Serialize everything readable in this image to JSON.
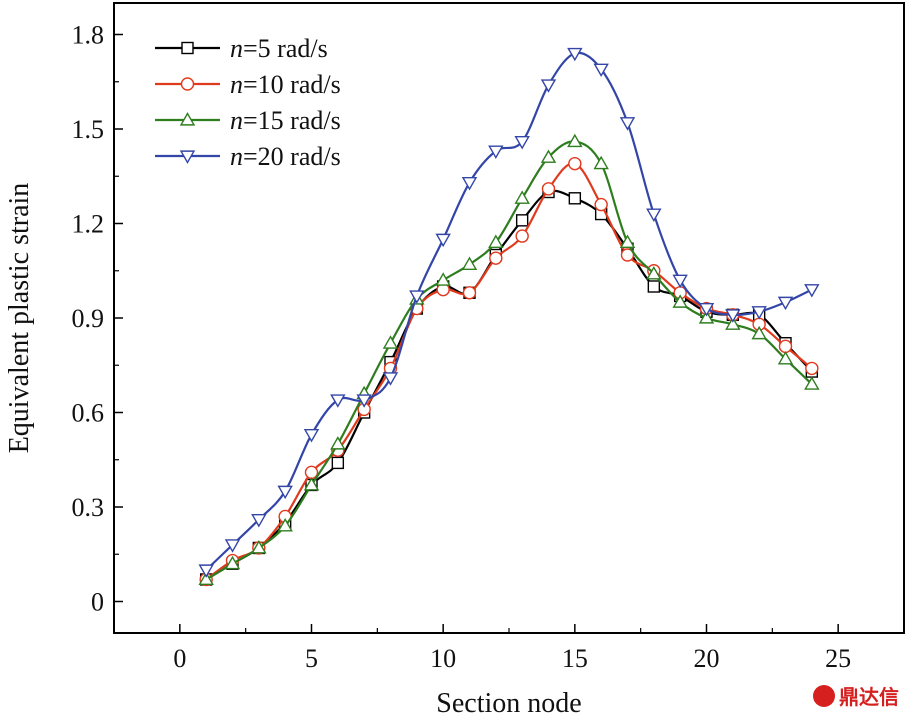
{
  "chart_data": {
    "type": "line",
    "title": "",
    "xlabel": "Section node",
    "ylabel": "Equivalent plastic strain",
    "xlim": [
      -2.5,
      27.5
    ],
    "ylim": [
      -0.1,
      1.9
    ],
    "xticks": [
      0,
      5,
      10,
      15,
      20,
      25
    ],
    "yticks": [
      0,
      0.3,
      0.6,
      0.9,
      1.2,
      1.5,
      1.8
    ],
    "xtick_labels": [
      "0",
      "5",
      "10",
      "15",
      "20",
      "25"
    ],
    "ytick_labels": [
      "0",
      "0.3",
      "0.6",
      "0.9",
      "1.2",
      "1.5",
      "1.8"
    ],
    "legend_position": "top-left",
    "x": [
      1,
      2,
      3,
      4,
      5,
      6,
      7,
      8,
      9,
      10,
      11,
      12,
      13,
      14,
      15,
      16,
      17,
      18,
      19,
      20,
      21,
      22,
      23,
      24
    ],
    "series": [
      {
        "name_italic": "n",
        "name_rest": "=5 rad/s",
        "color": "#000000",
        "marker": "square",
        "values": [
          0.07,
          0.12,
          0.17,
          0.25,
          0.37,
          0.44,
          0.6,
          0.76,
          0.93,
          1.0,
          0.98,
          1.1,
          1.21,
          1.3,
          1.28,
          1.23,
          1.12,
          1.0,
          0.97,
          0.92,
          0.91,
          0.91,
          0.82,
          0.73
        ]
      },
      {
        "name_italic": "n",
        "name_rest": "=10 rad/s",
        "color": "#e03a1e",
        "marker": "circle",
        "values": [
          0.07,
          0.13,
          0.17,
          0.27,
          0.41,
          0.48,
          0.61,
          0.74,
          0.93,
          0.99,
          0.98,
          1.09,
          1.16,
          1.31,
          1.39,
          1.26,
          1.1,
          1.05,
          0.98,
          0.93,
          0.91,
          0.88,
          0.81,
          0.74
        ]
      },
      {
        "name_italic": "n",
        "name_rest": "=15 rad/s",
        "color": "#2e7d1f",
        "marker": "triangle-up",
        "values": [
          0.07,
          0.12,
          0.17,
          0.24,
          0.37,
          0.5,
          0.66,
          0.82,
          0.96,
          1.02,
          1.07,
          1.14,
          1.28,
          1.41,
          1.46,
          1.39,
          1.14,
          1.04,
          0.95,
          0.9,
          0.88,
          0.85,
          0.77,
          0.69
        ]
      },
      {
        "name_italic": "n",
        "name_rest": "=20 rad/s",
        "color": "#3346a8",
        "marker": "triangle-down",
        "values": [
          0.1,
          0.18,
          0.26,
          0.35,
          0.53,
          0.64,
          0.64,
          0.71,
          0.97,
          1.15,
          1.33,
          1.43,
          1.46,
          1.64,
          1.74,
          1.69,
          1.52,
          1.23,
          1.02,
          0.93,
          0.91,
          0.92,
          0.95,
          0.99
        ]
      }
    ]
  },
  "watermark": {
    "text": "鼎达信"
  }
}
